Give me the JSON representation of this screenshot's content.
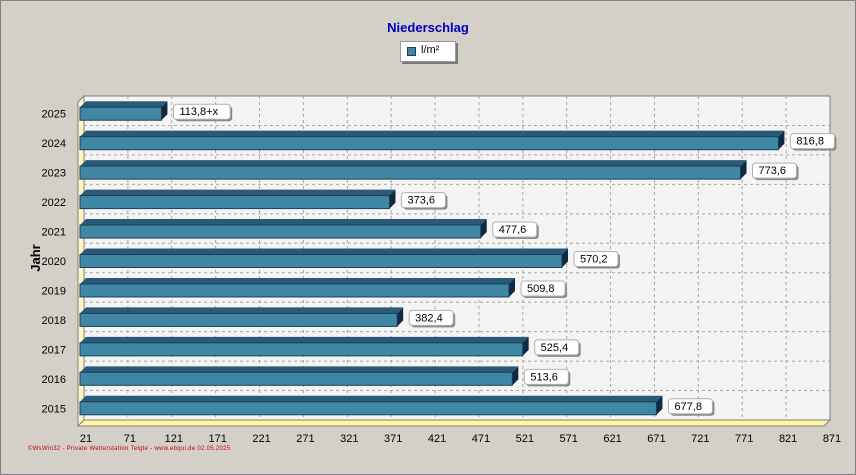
{
  "chart_data": {
    "type": "bar",
    "orientation": "horizontal",
    "title": "Niederschlag",
    "xlabel": "",
    "ylabel": "Jahr",
    "categories": [
      "2015",
      "2016",
      "2017",
      "2018",
      "2019",
      "2020",
      "2021",
      "2022",
      "2023",
      "2024",
      "2025"
    ],
    "series": [
      {
        "name": "l/m²",
        "values": [
          677.8,
          513.6,
          525.4,
          382.4,
          509.8,
          570.2,
          477.6,
          373.6,
          773.6,
          816.8,
          113.8
        ],
        "labels": [
          "677,8",
          "513,6",
          "525,4",
          "382,4",
          "509,8",
          "570,2",
          "477,6",
          "373,6",
          "773,6",
          "816,8",
          "113,8+x"
        ],
        "color": "#3f87a5"
      }
    ],
    "xlim": [
      21,
      871
    ],
    "xticks": [
      "21",
      "71",
      "121",
      "171",
      "221",
      "271",
      "321",
      "371",
      "421",
      "471",
      "521",
      "571",
      "621",
      "671",
      "721",
      "771",
      "821",
      "871"
    ],
    "grid": true,
    "legend": "top-center"
  },
  "footer": "©WsWin32 - Private Wetterstation Telgte - www.ebqui.de 02.05.2025"
}
